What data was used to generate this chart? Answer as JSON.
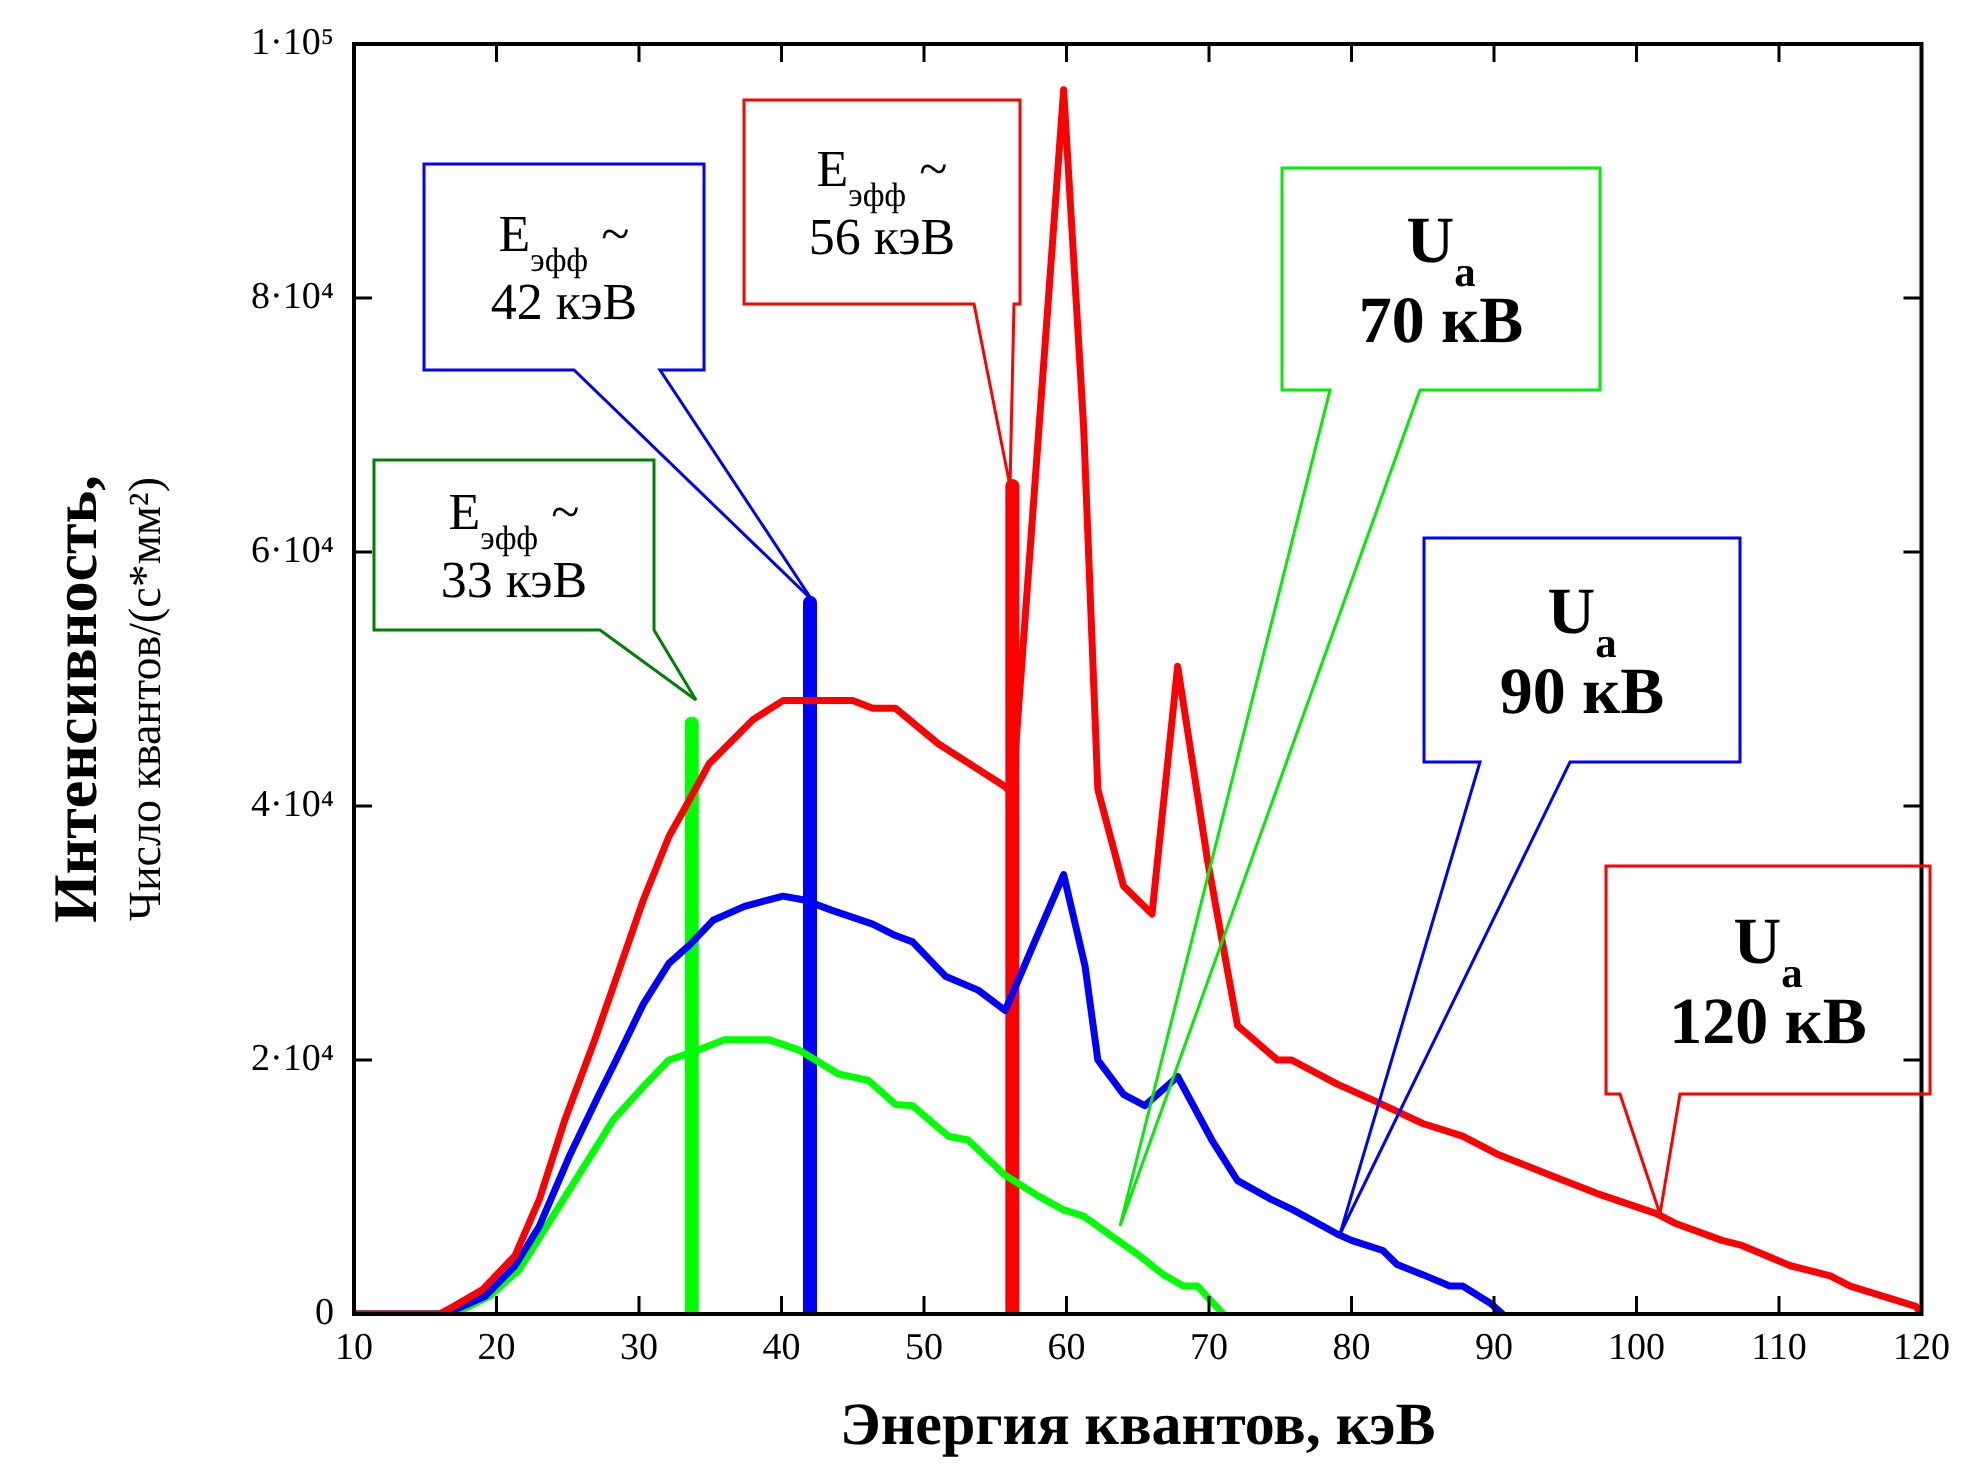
{
  "chart_data": {
    "type": "line",
    "xlabel": "Энергия квантов, кэВ",
    "ylabel": "Интенсивность,\nЧисло квантов/(с*мм²)",
    "xlim": [
      10,
      120
    ],
    "xticks": [
      10,
      20,
      30,
      40,
      50,
      60,
      70,
      80,
      90,
      100,
      110,
      120
    ],
    "ylim": [
      0,
      100000
    ],
    "yticks": [
      0,
      {
        "value": 20000,
        "label": "2·10⁴"
      },
      {
        "value": 40000,
        "label": "4·10⁴"
      },
      {
        "value": 60000,
        "label": "6·10⁴"
      },
      {
        "value": 80000,
        "label": "8·10⁴"
      },
      {
        "value": 100000,
        "label": "1·10⁵"
      }
    ],
    "grid": false,
    "legend": false,
    "marker": "none",
    "line_style": "solid",
    "series": [
      {
        "color": "#ff0000",
        "x": [
          10,
          16,
          17,
          19,
          21.3,
          23,
          24.8,
          26.9,
          28.2,
          30.3,
          32.1,
          33.3,
          34.9,
          38,
          40.1,
          45,
          46.4,
          48,
          51,
          55.6,
          56.2,
          59.8,
          61.2,
          62.2,
          64,
          66,
          67.8,
          69.9,
          72,
          74.8,
          75.8,
          79,
          81.4,
          85,
          87.8,
          90.2,
          94,
          97.2,
          101.4,
          102.8,
          106,
          107.4,
          110.8,
          113.6,
          115,
          119.6,
          120
        ],
        "values": [
          0,
          0,
          600,
          1900,
          4600,
          9000,
          15300,
          21600,
          25800,
          32600,
          37600,
          40000,
          43300,
          46800,
          48300,
          48300,
          47700,
          47700,
          44900,
          41600,
          41000,
          96400,
          69900,
          41300,
          33700,
          31500,
          51000,
          35700,
          22700,
          20000,
          20000,
          18100,
          16900,
          15000,
          14000,
          12600,
          10900,
          9500,
          7900,
          7100,
          5800,
          5400,
          3800,
          3000,
          2200,
          600,
          0
        ]
      },
      {
        "color": "#0000ff",
        "x": [
          10,
          16.4,
          19.2,
          21.3,
          23,
          25.1,
          27.2,
          28.4,
          30.3,
          32.1,
          33.5,
          35.2,
          37.4,
          40.1,
          41.6,
          43.5,
          46.4,
          48,
          49.2,
          51.5,
          53.8,
          55.7,
          57.8,
          59.8,
          61.3,
          62.2,
          64,
          65.5,
          67.8,
          70.2,
          72,
          74.4,
          75.9,
          79,
          80,
          82.2,
          83.2,
          85,
          86.9,
          87.8,
          89.8,
          90.6
        ],
        "values": [
          0,
          0,
          1400,
          3800,
          6900,
          12400,
          17300,
          20000,
          24400,
          27600,
          29000,
          31000,
          32100,
          32900,
          32600,
          31800,
          30700,
          29800,
          29300,
          26600,
          25500,
          23900,
          29400,
          34600,
          27400,
          20000,
          17300,
          16400,
          18700,
          13700,
          10500,
          9000,
          8200,
          6300,
          5800,
          5000,
          3900,
          3100,
          2200,
          2200,
          800,
          0
        ]
      },
      {
        "color": "#00ff00",
        "x": [
          10,
          17,
          19.5,
          21.6,
          24.4,
          28.2,
          30.3,
          32.1,
          34.2,
          36,
          39.1,
          41.2,
          44,
          46.1,
          48,
          49.2,
          51.7,
          53.1,
          55.6,
          58,
          59.8,
          61.2,
          63.6,
          65,
          66.8,
          68.2,
          69.2,
          71
        ],
        "values": [
          0,
          0,
          1400,
          3500,
          8500,
          15300,
          17900,
          20000,
          20800,
          21600,
          21600,
          20800,
          18900,
          18400,
          16500,
          16400,
          14000,
          13700,
          11000,
          9300,
          8200,
          7700,
          5800,
          4700,
          3100,
          2200,
          2200,
          0
        ]
      },
      {
        "color": "#00ff00",
        "x": [
          33.7,
          33.7
        ],
        "values": [
          0,
          46500
        ]
      },
      {
        "color": "#0000ff",
        "x": [
          42,
          42
        ],
        "values": [
          0,
          56000
        ]
      },
      {
        "color": "#ff0000",
        "x": [
          56.2,
          56.2
        ],
        "values": [
          0,
          65200
        ]
      }
    ],
    "annotations": [
      "E$_{эфф}$ ~\n33 кэВ",
      "E$_{эфф}$ ~\n42 кэВ",
      "E$_{эфф}$ ~\n56 кэВ",
      "U$_{a}$\n70 кВ",
      "U$_{a}$\n90 кВ",
      "U$_{a}$\n120 кВ"
    ]
  }
}
